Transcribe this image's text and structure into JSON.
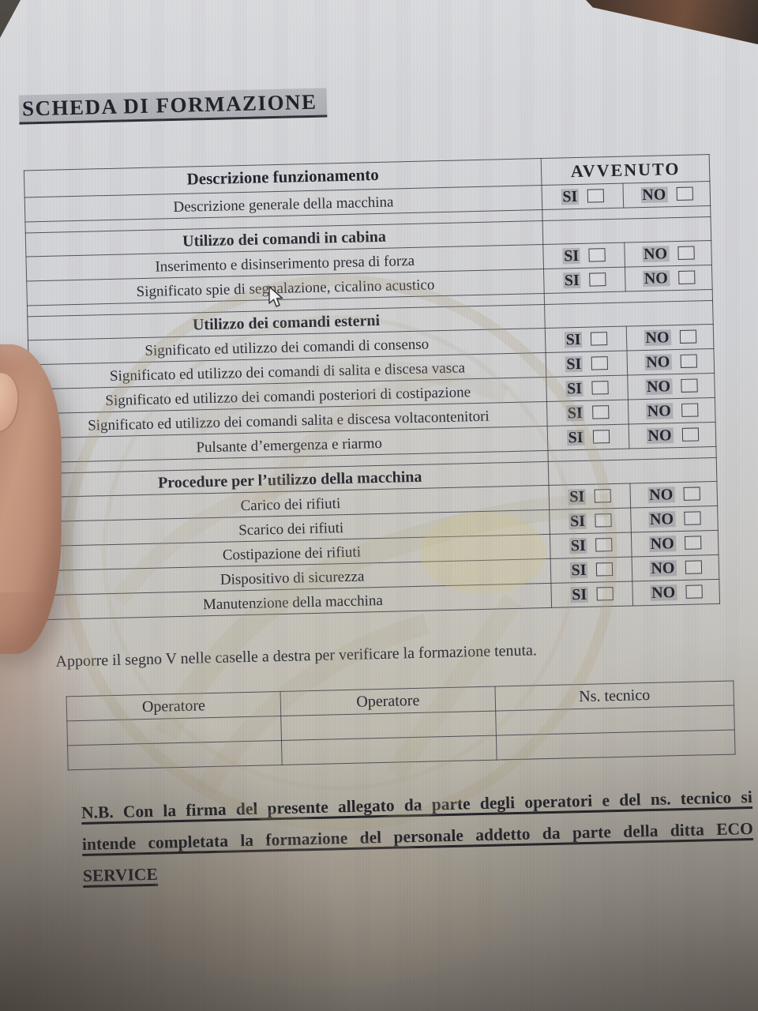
{
  "document": {
    "title": "SCHEDA DI FORMAZIONE",
    "table": {
      "description_header": "Descrizione funzionamento",
      "avvenuto_header": "AVVENUTO",
      "yes_label": "SI",
      "no_label": "NO",
      "rows": [
        {
          "type": "item",
          "label": "Descrizione generale della macchina"
        },
        {
          "type": "spacer",
          "label": ""
        },
        {
          "type": "section",
          "label": "Utilizzo dei comandi in cabina"
        },
        {
          "type": "item",
          "label": "Inserimento e disinserimento presa di forza"
        },
        {
          "type": "item",
          "label": "Significato spie di segnalazione, cicalino acustico"
        },
        {
          "type": "spacer",
          "label": ""
        },
        {
          "type": "section",
          "label": "Utilizzo dei comandi esterni"
        },
        {
          "type": "item",
          "label": "Significato ed utilizzo dei comandi di consenso"
        },
        {
          "type": "item",
          "label": "Significato ed utilizzo dei comandi di salita e discesa vasca"
        },
        {
          "type": "item",
          "label": "Significato ed utilizzo dei comandi posteriori di costipazione"
        },
        {
          "type": "item",
          "label": "Significato ed utilizzo dei comandi salita e discesa voltacontenitori"
        },
        {
          "type": "item",
          "label": "Pulsante d’emergenza e riarmo"
        },
        {
          "type": "spacer",
          "label": ""
        },
        {
          "type": "section",
          "label": "Procedure per l’utilizzo della macchina"
        },
        {
          "type": "item",
          "label": "Carico dei rifiuti"
        },
        {
          "type": "item",
          "label": "Scarico dei rifiuti"
        },
        {
          "type": "item",
          "label": "Costipazione dei rifiuti"
        },
        {
          "type": "item",
          "label": "Dispositivo di sicurezza"
        },
        {
          "type": "item",
          "label": "Manutenzione della macchina"
        }
      ]
    },
    "instruction_note": "Apporre il segno V nelle caselle a destra per verificare la formazione tenuta.",
    "signature_table": {
      "headers": [
        "Operatore",
        "Operatore",
        "Ns. tecnico"
      ],
      "empty_rows": 2
    },
    "nb_note": {
      "lines": [
        "N.B. Con la firma del presente allegato da parte degli operatori e del ns. tecnico si",
        "intende completata la formazione del personale addetto da parte della ditta ECO",
        "SERVICE"
      ]
    }
  },
  "icons": {
    "checkbox": "empty-square",
    "mouse_cursor": "arrow-pointer",
    "watermark": "circular-stamp"
  },
  "colors": {
    "paper": "#d1d2d5",
    "ink": "#26262e",
    "highlight_gray": "#8a8a94",
    "table_border": "#3c3c46",
    "watermark_tan": "#ab9f7d",
    "desk_dark_brown": "#3a2b22",
    "thumb_skin": "#c69981"
  }
}
